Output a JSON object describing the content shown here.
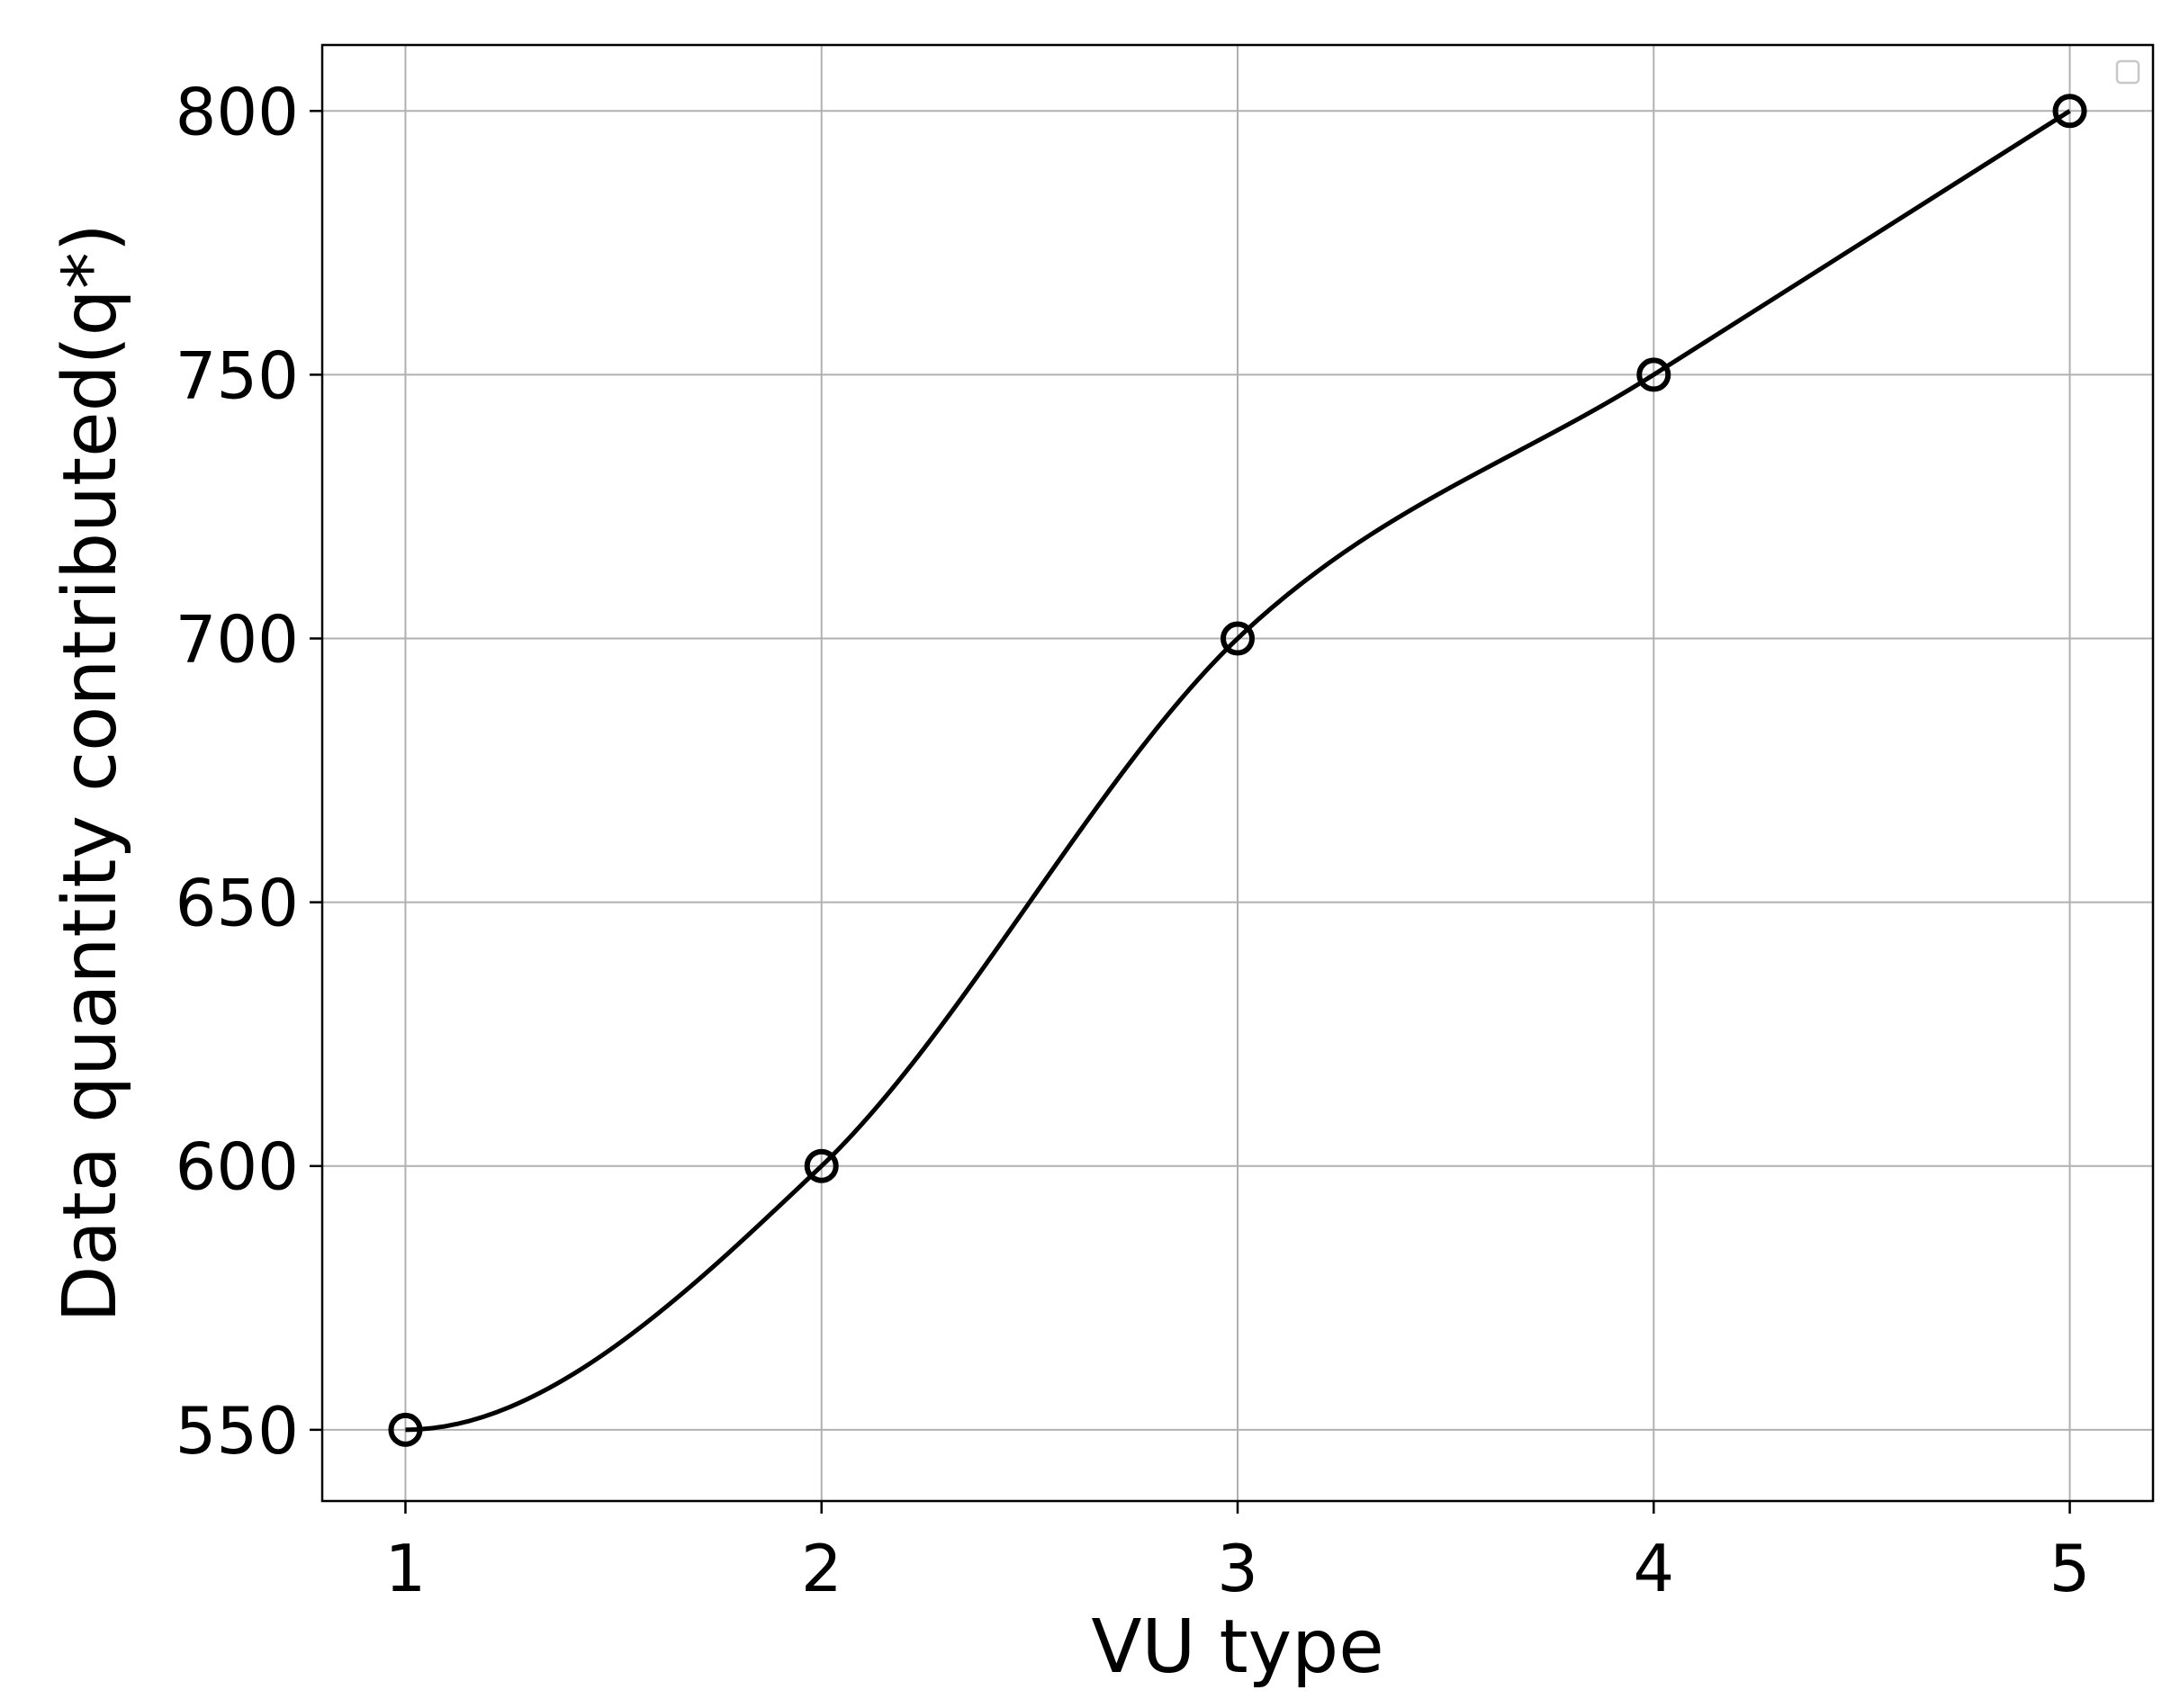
{
  "chart_data": {
    "type": "line",
    "x": [
      1,
      2,
      3,
      4,
      5
    ],
    "series": [
      {
        "values": [
          550,
          600,
          700,
          750,
          800
        ],
        "marker": "open-circle",
        "color": "#000000",
        "smooth": true
      }
    ],
    "xlabel": "VU type",
    "ylabel": "Data quantity contributed(q*)",
    "xticks": [
      "1",
      "2",
      "3",
      "4",
      "5"
    ],
    "yticks": [
      "550",
      "600",
      "650",
      "700",
      "750",
      "800"
    ],
    "xlim": [
      0.8,
      5.2
    ],
    "ylim": [
      536.5,
      812.5
    ],
    "grid": true,
    "legend": "top-right (empty)"
  }
}
